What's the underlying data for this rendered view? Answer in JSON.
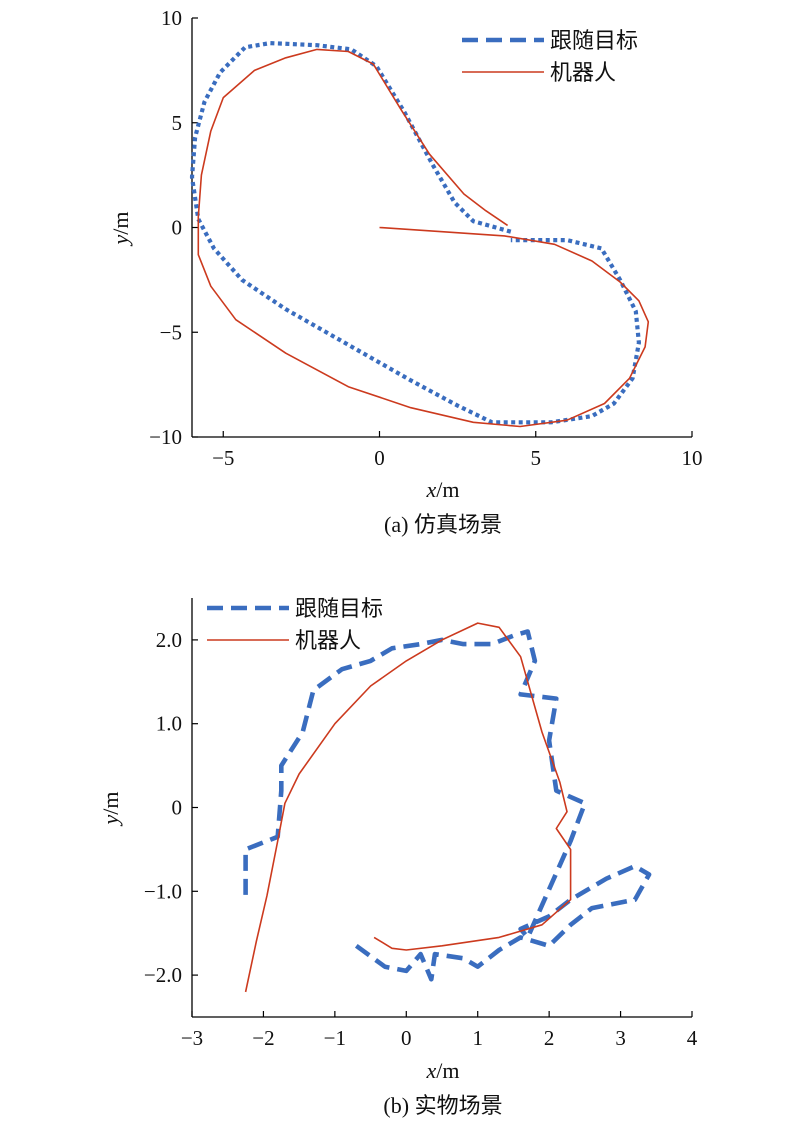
{
  "chart_data": [
    {
      "type": "line",
      "caption": "(a) 仿真场景",
      "xlabel": "x",
      "xlabel_unit": "/m",
      "ylabel": "y",
      "ylabel_unit": "/m",
      "xlim": [
        -6,
        10
      ],
      "ylim": [
        -10,
        10
      ],
      "xticks": [
        -5,
        0,
        5,
        10
      ],
      "xtick_labels": [
        "−5",
        "0",
        "5",
        "10"
      ],
      "yticks": [
        -10,
        -5,
        0,
        5,
        10
      ],
      "ytick_labels": [
        "−10",
        "−5",
        "0",
        "5",
        "10"
      ],
      "grid": false,
      "legend_position": "top-right",
      "series": [
        {
          "name": "跟随目标",
          "color": "#3a6dbf",
          "style": "dashed",
          "points": [
            [
              4.2,
              -0.2
            ],
            [
              3.0,
              0.3
            ],
            [
              2.4,
              1.2
            ],
            [
              1.7,
              3.0
            ],
            [
              0.8,
              5.5
            ],
            [
              -0.1,
              7.7
            ],
            [
              -0.9,
              8.5
            ],
            [
              -2.0,
              8.7
            ],
            [
              -3.5,
              8.8
            ],
            [
              -4.3,
              8.6
            ],
            [
              -5.1,
              7.4
            ],
            [
              -5.6,
              6.0
            ],
            [
              -5.9,
              4.3
            ],
            [
              -6.0,
              2.4
            ],
            [
              -5.8,
              0.4
            ],
            [
              -5.3,
              -1.0
            ],
            [
              -4.4,
              -2.5
            ],
            [
              -3.0,
              -3.9
            ],
            [
              -1.0,
              -5.6
            ],
            [
              1.0,
              -7.3
            ],
            [
              2.5,
              -8.5
            ],
            [
              3.6,
              -9.3
            ],
            [
              4.3,
              -9.3
            ],
            [
              5.5,
              -9.3
            ],
            [
              6.8,
              -9.0
            ],
            [
              7.5,
              -8.4
            ],
            [
              8.1,
              -7.2
            ],
            [
              8.3,
              -5.5
            ],
            [
              8.2,
              -4.0
            ],
            [
              7.7,
              -2.5
            ],
            [
              7.1,
              -1.0
            ],
            [
              6.0,
              -0.6
            ],
            [
              4.2,
              -0.6
            ]
          ]
        },
        {
          "name": "机器人",
          "color": "#cc3a1e",
          "style": "solid",
          "points": [
            [
              0.0,
              0.0
            ],
            [
              2.0,
              -0.2
            ],
            [
              4.0,
              -0.4
            ],
            [
              5.6,
              -0.8
            ],
            [
              6.8,
              -1.6
            ],
            [
              7.7,
              -2.6
            ],
            [
              8.3,
              -3.5
            ],
            [
              8.6,
              -4.5
            ],
            [
              8.5,
              -5.7
            ],
            [
              8.0,
              -7.2
            ],
            [
              7.2,
              -8.4
            ],
            [
              6.0,
              -9.2
            ],
            [
              4.5,
              -9.5
            ],
            [
              3.0,
              -9.3
            ],
            [
              1.0,
              -8.6
            ],
            [
              -1.0,
              -7.6
            ],
            [
              -3.0,
              -6.0
            ],
            [
              -4.6,
              -4.4
            ],
            [
              -5.4,
              -2.8
            ],
            [
              -5.8,
              -1.3
            ],
            [
              -5.8,
              0.5
            ],
            [
              -5.7,
              2.5
            ],
            [
              -5.4,
              4.6
            ],
            [
              -5.0,
              6.2
            ],
            [
              -4.0,
              7.5
            ],
            [
              -3.0,
              8.1
            ],
            [
              -2.0,
              8.5
            ],
            [
              -1.0,
              8.4
            ],
            [
              -0.2,
              7.8
            ],
            [
              0.7,
              5.6
            ],
            [
              1.6,
              3.5
            ],
            [
              2.7,
              1.6
            ],
            [
              3.4,
              0.8
            ],
            [
              4.1,
              0.1
            ]
          ]
        }
      ]
    },
    {
      "type": "line",
      "caption": "(b) 实物场景",
      "xlabel": "x",
      "xlabel_unit": "/m",
      "ylabel": "y",
      "ylabel_unit": "/m",
      "xlim": [
        -3,
        4
      ],
      "ylim": [
        -2.5,
        2.5
      ],
      "xticks": [
        -3,
        -2,
        -1,
        0,
        1,
        2,
        3,
        4
      ],
      "xtick_labels": [
        "−3",
        "−2",
        "−1",
        "0",
        "1",
        "2",
        "3",
        "4"
      ],
      "yticks": [
        -2,
        -1,
        0,
        1,
        2
      ],
      "ytick_labels": [
        "−2.0",
        "−1.0",
        "0",
        "1.0",
        "2.0"
      ],
      "grid": false,
      "legend_position": "top-left",
      "series": [
        {
          "name": "跟随目标",
          "color": "#3a6dbf",
          "style": "dashed",
          "points": [
            [
              -0.7,
              -1.65
            ],
            [
              -0.3,
              -1.9
            ],
            [
              0.0,
              -1.95
            ],
            [
              0.2,
              -1.75
            ],
            [
              0.35,
              -2.05
            ],
            [
              0.4,
              -1.75
            ],
            [
              0.8,
              -1.8
            ],
            [
              1.0,
              -1.9
            ],
            [
              1.3,
              -1.7
            ],
            [
              1.6,
              -1.55
            ],
            [
              2.0,
              -1.65
            ],
            [
              2.3,
              -1.4
            ],
            [
              2.6,
              -1.2
            ],
            [
              3.2,
              -1.1
            ],
            [
              3.4,
              -0.8
            ],
            [
              3.2,
              -0.7
            ],
            [
              2.8,
              -0.85
            ],
            [
              2.3,
              -1.1
            ],
            [
              2.0,
              -1.3
            ],
            [
              1.6,
              -1.45
            ],
            [
              1.7,
              -1.55
            ],
            [
              2.3,
              -0.4
            ],
            [
              2.5,
              0.05
            ],
            [
              2.1,
              0.2
            ],
            [
              2.0,
              0.8
            ],
            [
              2.1,
              1.3
            ],
            [
              1.6,
              1.35
            ],
            [
              1.8,
              1.75
            ],
            [
              1.7,
              2.1
            ],
            [
              1.5,
              2.05
            ],
            [
              1.2,
              1.95
            ],
            [
              0.8,
              1.95
            ],
            [
              0.5,
              2.0
            ],
            [
              0.2,
              1.95
            ],
            [
              -0.2,
              1.9
            ],
            [
              -0.5,
              1.75
            ],
            [
              -0.9,
              1.65
            ],
            [
              -1.3,
              1.4
            ],
            [
              -1.45,
              0.9
            ],
            [
              -1.75,
              0.5
            ],
            [
              -1.75,
              0.2
            ],
            [
              -1.8,
              -0.35
            ],
            [
              -2.25,
              -0.5
            ],
            [
              -2.25,
              -1.1
            ]
          ]
        },
        {
          "name": "机器人",
          "color": "#cc3a1e",
          "style": "solid",
          "points": [
            [
              -2.25,
              -2.2
            ],
            [
              -2.1,
              -1.6
            ],
            [
              -1.95,
              -1.05
            ],
            [
              -1.8,
              -0.4
            ],
            [
              -1.7,
              0.05
            ],
            [
              -1.5,
              0.4
            ],
            [
              -1.0,
              1.0
            ],
            [
              -0.5,
              1.45
            ],
            [
              0.0,
              1.75
            ],
            [
              0.5,
              2.0
            ],
            [
              1.0,
              2.2
            ],
            [
              1.3,
              2.15
            ],
            [
              1.6,
              1.8
            ],
            [
              1.9,
              0.9
            ],
            [
              2.15,
              0.3
            ],
            [
              2.25,
              -0.05
            ],
            [
              2.1,
              -0.25
            ],
            [
              2.3,
              -0.5
            ],
            [
              2.3,
              -1.1
            ],
            [
              1.9,
              -1.4
            ],
            [
              1.3,
              -1.55
            ],
            [
              0.5,
              -1.65
            ],
            [
              0.0,
              -1.7
            ],
            [
              -0.2,
              -1.68
            ],
            [
              -0.45,
              -1.55
            ]
          ]
        }
      ]
    }
  ]
}
